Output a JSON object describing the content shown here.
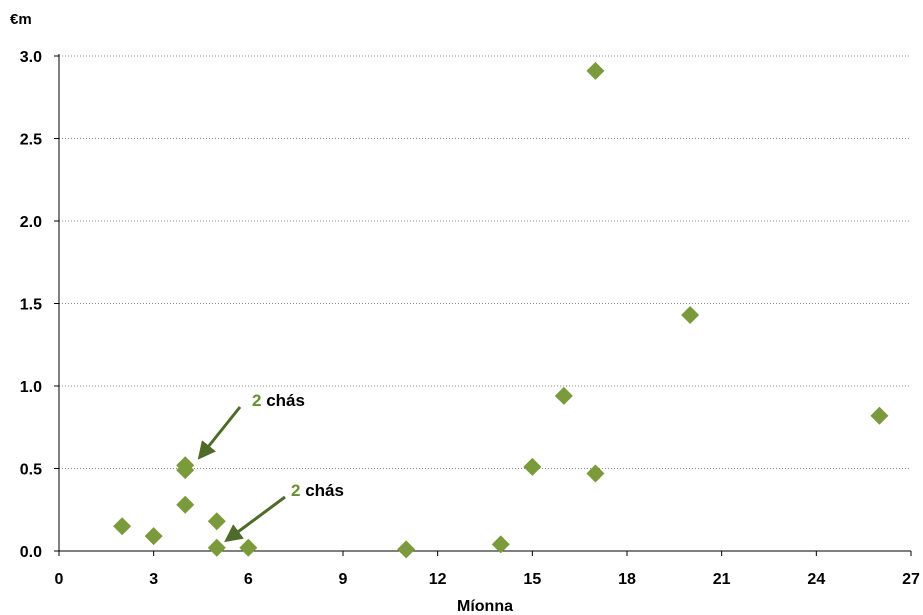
{
  "chart_data": {
    "type": "scatter",
    "title": "",
    "xlabel": "Míonna",
    "ylabel": "€m",
    "xlim": [
      0,
      27
    ],
    "ylim": [
      0,
      3.0
    ],
    "xticks": [
      0,
      3,
      6,
      9,
      12,
      15,
      18,
      21,
      24,
      27
    ],
    "xtick_labels": [
      "0",
      "3",
      "6",
      "9",
      "12",
      "15",
      "18",
      "21",
      "24",
      "27"
    ],
    "yticks": [
      0,
      0.5,
      1.0,
      1.5,
      2.0,
      2.5,
      3.0
    ],
    "ytick_labels": [
      "0.0",
      "0.5",
      "1.0",
      "1.5",
      "2.0",
      "2.5",
      "3.0"
    ],
    "grid": "horizontal-dotted",
    "marker": "diamond",
    "marker_color": "#7a9a3c",
    "points": [
      {
        "x": 2,
        "y": 0.15
      },
      {
        "x": 3,
        "y": 0.09
      },
      {
        "x": 4,
        "y": 0.52
      },
      {
        "x": 4,
        "y": 0.49
      },
      {
        "x": 4,
        "y": 0.28
      },
      {
        "x": 5,
        "y": 0.18
      },
      {
        "x": 5,
        "y": 0.02
      },
      {
        "x": 6,
        "y": 0.02
      },
      {
        "x": 11,
        "y": 0.01
      },
      {
        "x": 14,
        "y": 0.04
      },
      {
        "x": 15,
        "y": 0.51
      },
      {
        "x": 16,
        "y": 0.94
      },
      {
        "x": 17,
        "y": 0.47
      },
      {
        "x": 17,
        "y": 2.91
      },
      {
        "x": 20,
        "y": 1.43
      },
      {
        "x": 26,
        "y": 0.82
      }
    ],
    "annotations": [
      {
        "number": "2",
        "text": "chás",
        "point": {
          "x": 4,
          "y": 0.52
        }
      },
      {
        "number": "2",
        "text": "chás",
        "point": {
          "x": 5,
          "y": 0.02
        }
      }
    ]
  },
  "colors": {
    "marker": "#7a9a3c",
    "annotation_number": "#6a8e32",
    "arrow": "#4f6b2a",
    "grid": "#888888"
  }
}
